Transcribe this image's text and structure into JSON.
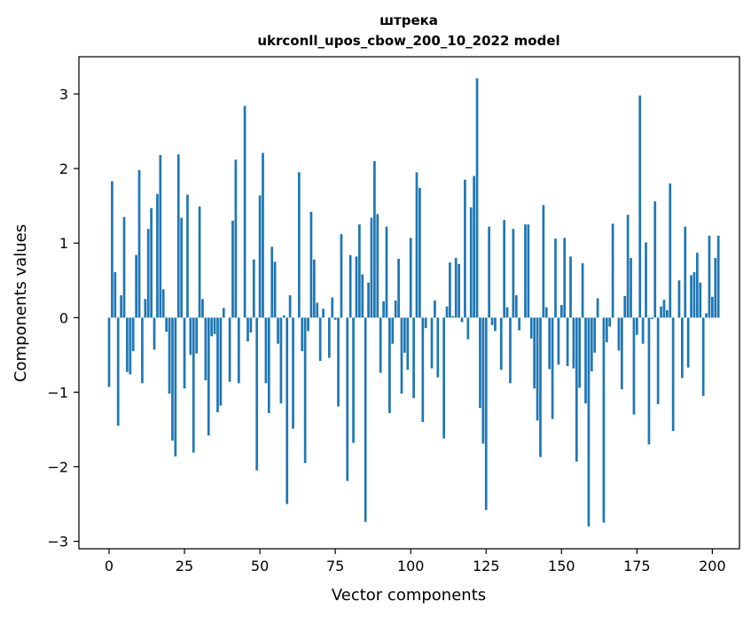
{
  "chart_data": {
    "type": "bar",
    "title_line1": "штрека",
    "title_line2": "ukrconll_upos_cbow_200_10_2022 model",
    "xlabel": "Vector components",
    "ylabel": "Components values",
    "xlim": [
      -10,
      209
    ],
    "ylim": [
      -3.1,
      3.5
    ],
    "x_ticks": [
      0,
      25,
      50,
      75,
      100,
      125,
      150,
      175,
      200
    ],
    "x_tick_labels": [
      "0",
      "25",
      "50",
      "75",
      "100",
      "125",
      "150",
      "175",
      "200"
    ],
    "y_ticks": [
      -3,
      -2,
      -1,
      0,
      1,
      2,
      3
    ],
    "y_tick_labels": [
      "−3",
      "−2",
      "−1",
      "0",
      "1",
      "2",
      "3"
    ],
    "bar_color": "#1f77b4",
    "grid": false,
    "values": [
      -0.93,
      1.83,
      0.61,
      -1.45,
      0.3,
      1.35,
      -0.73,
      -0.76,
      -0.45,
      0.84,
      1.98,
      -0.88,
      0.25,
      1.19,
      1.47,
      -0.43,
      1.66,
      2.18,
      0.38,
      -0.19,
      -1.02,
      -1.65,
      -1.86,
      2.19,
      1.34,
      -0.95,
      1.65,
      -0.5,
      -1.81,
      -0.48,
      1.49,
      0.25,
      -0.84,
      -1.58,
      -0.25,
      -0.22,
      -1.27,
      -1.18,
      0.13,
      0.0,
      -0.86,
      1.3,
      2.12,
      -0.88,
      0.0,
      2.84,
      -0.32,
      -0.2,
      0.78,
      -2.05,
      1.64,
      2.21,
      -0.88,
      -1.28,
      0.95,
      0.75,
      -0.35,
      -1.15,
      0.03,
      -2.5,
      0.3,
      -1.49,
      0.0,
      1.95,
      -0.45,
      -1.95,
      -0.18,
      1.42,
      0.78,
      0.2,
      -0.58,
      0.12,
      0.0,
      -0.54,
      0.27,
      -0.03,
      -1.19,
      1.12,
      0.0,
      -2.19,
      0.84,
      -1.68,
      0.82,
      1.25,
      0.58,
      -2.74,
      0.47,
      1.34,
      2.1,
      1.39,
      -0.74,
      0.22,
      1.22,
      -1.28,
      -0.35,
      0.23,
      0.79,
      -1.02,
      -0.47,
      -0.7,
      1.07,
      -1.08,
      1.95,
      1.74,
      -1.4,
      -0.14,
      0.0,
      -0.68,
      0.23,
      -0.8,
      0.0,
      -1.62,
      0.15,
      0.74,
      0.02,
      0.8,
      0.72,
      -0.06,
      1.85,
      -0.29,
      1.48,
      1.9,
      3.21,
      -1.21,
      -1.69,
      -2.58,
      1.22,
      -0.1,
      -0.18,
      0.0,
      -0.7,
      1.31,
      0.14,
      -0.88,
      1.19,
      0.3,
      -0.17,
      0.0,
      1.25,
      1.25,
      -0.28,
      -0.95,
      -1.38,
      -1.87,
      1.51,
      0.14,
      -0.69,
      -1.36,
      1.06,
      -0.63,
      0.17,
      1.07,
      -0.65,
      0.82,
      -0.68,
      -1.93,
      -0.94,
      0.73,
      -1.15,
      -2.8,
      -0.72,
      -0.47,
      0.26,
      0.0,
      -2.75,
      -0.33,
      -0.12,
      1.26,
      0.0,
      -0.44,
      -0.96,
      0.29,
      1.38,
      0.8,
      -1.3,
      -0.23,
      2.98,
      -0.35,
      1.01,
      -1.7,
      -0.02,
      1.56,
      -1.16,
      0.15,
      0.24,
      0.1,
      1.8,
      -1.52,
      0.0,
      0.5,
      -0.81,
      1.22,
      -0.67,
      0.57,
      0.61,
      0.87,
      0.47,
      -1.05,
      0.06,
      1.1,
      0.28,
      0.8,
      1.1
    ]
  }
}
